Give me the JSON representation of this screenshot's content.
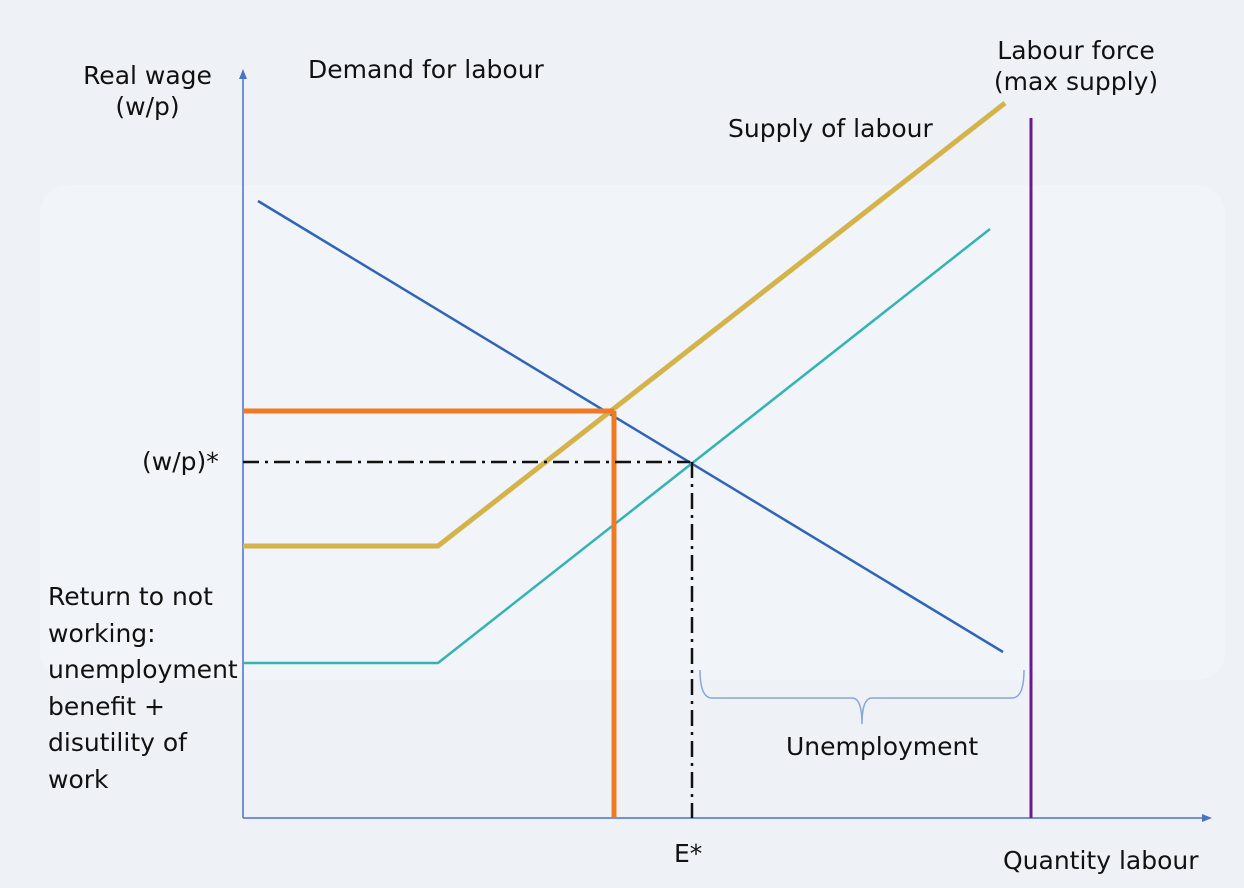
{
  "axes": {
    "y_label_line1": "Real wage",
    "y_label_line2": "(w/p)",
    "x_label": "Quantity labour"
  },
  "curves": {
    "demand": "Demand for labour",
    "supply": "Supply of labour",
    "labour_force_line1": "Labour force",
    "labour_force_line2": "(max supply)"
  },
  "markers": {
    "equilibrium_wage": "(w/p)*",
    "equilibrium_employment": "E*"
  },
  "annotations": {
    "unemployment": "Unemployment",
    "reservation": [
      "Return to not",
      "working:",
      "unemployment",
      "benefit +",
      "disutility of",
      "work"
    ]
  },
  "colors": {
    "axis": "#4a72c4",
    "demand": "#2f64b8",
    "supply": "#d4b44a",
    "teal": "#34b3b3",
    "orange": "#f07a22",
    "labour_force": "#6a1a8c",
    "dash": "#111111",
    "brace": "#8aa6d4"
  }
}
